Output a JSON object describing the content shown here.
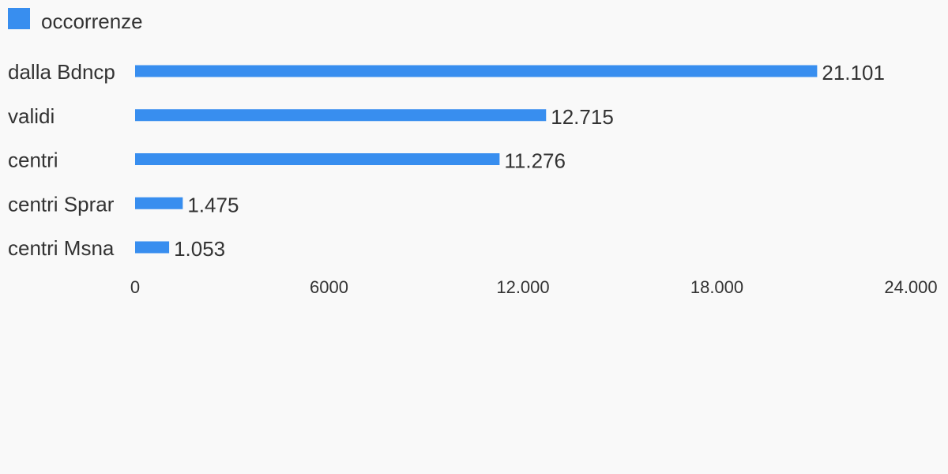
{
  "chart_data": {
    "type": "bar",
    "orientation": "horizontal",
    "categories": [
      "dalla Bdncp",
      "validi",
      "centri",
      "centri Sprar",
      "centri Msna"
    ],
    "series": [
      {
        "name": "occorrenze",
        "values": [
          21101,
          12715,
          11276,
          1475,
          1053
        ],
        "value_labels": [
          "21.101",
          "12.715",
          "11.276",
          "1.475",
          "1.053"
        ]
      }
    ],
    "xlim": [
      0,
      24000
    ],
    "x_ticks": [
      0,
      6000,
      12000,
      18000,
      24000
    ],
    "x_tick_labels": [
      "0",
      "6000",
      "12.000",
      "18.000",
      "24.000"
    ],
    "title": "",
    "xlabel": "",
    "ylabel": "",
    "grid": false,
    "legend_position": "top-left"
  },
  "colors": {
    "bar": "#388eef",
    "text": "#333333",
    "background": "#f9f9f9"
  }
}
